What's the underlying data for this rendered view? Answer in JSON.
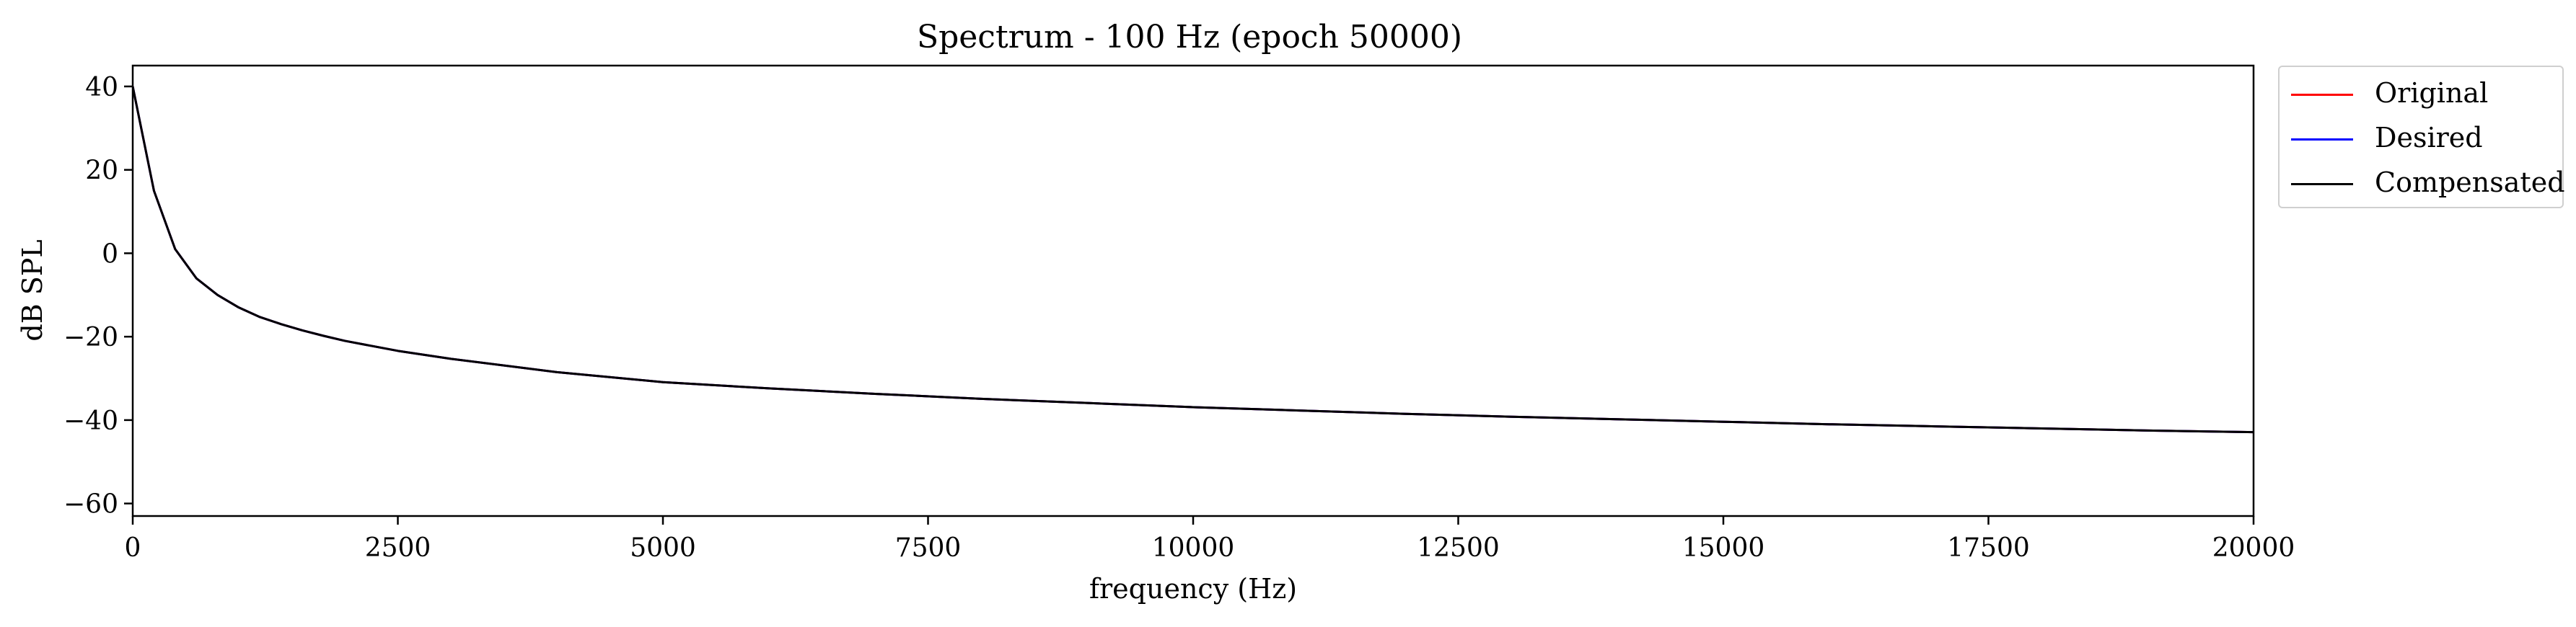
{
  "chart_data": {
    "type": "line",
    "title": "Spectrum - 100 Hz (epoch 50000)",
    "xlabel": "frequency (Hz)",
    "ylabel": "dB SPL",
    "xlim": [
      0,
      20000
    ],
    "ylim": [
      -63,
      45
    ],
    "xticks": [
      0,
      2500,
      5000,
      7500,
      10000,
      12500,
      15000,
      17500,
      20000
    ],
    "yticks": [
      40,
      20,
      0,
      -20,
      -40,
      -60
    ],
    "xtick_labels": [
      "0",
      "2500",
      "5000",
      "7500",
      "10000",
      "12500",
      "15000",
      "17500",
      "20000"
    ],
    "ytick_labels": [
      "40",
      "20",
      "0",
      "−20",
      "−40",
      "−60"
    ],
    "grid": false,
    "legend": "outside-right-top",
    "x": [
      0,
      200,
      400,
      600,
      800,
      1000,
      1200,
      1400,
      1600,
      1800,
      2000,
      2500,
      3000,
      4000,
      5000,
      6000,
      7000,
      8000,
      9000,
      10000,
      11000,
      12000,
      13000,
      14000,
      15000,
      16000,
      17000,
      18000,
      19000,
      20000
    ],
    "series": [
      {
        "name": "Original",
        "color": "#ff0000",
        "values": [
          40,
          15,
          1,
          -6,
          -10,
          -13,
          -15.3,
          -17,
          -18.5,
          -19.8,
          -21,
          -23.4,
          -25.3,
          -28.5,
          -30.9,
          -32.4,
          -33.7,
          -34.9,
          -35.9,
          -36.9,
          -37.7,
          -38.5,
          -39.2,
          -39.8,
          -40.4,
          -41,
          -41.5,
          -42,
          -42.5,
          -42.9
        ]
      },
      {
        "name": "Desired",
        "color": "#0000ff",
        "values": [
          40,
          15,
          1,
          -6,
          -10,
          -13,
          -15.3,
          -17,
          -18.5,
          -19.8,
          -21,
          -23.4,
          -25.3,
          -28.5,
          -30.9,
          -32.4,
          -33.7,
          -34.9,
          -35.9,
          -36.9,
          -37.7,
          -38.5,
          -39.2,
          -39.8,
          -40.4,
          -41,
          -41.5,
          -42,
          -42.5,
          -42.9
        ]
      },
      {
        "name": "Compensated",
        "color": "#000000",
        "values": [
          40,
          15,
          1,
          -6,
          -10,
          -13,
          -15.3,
          -17,
          -18.5,
          -19.8,
          -21,
          -23.4,
          -25.3,
          -28.5,
          -30.9,
          -32.4,
          -33.7,
          -34.9,
          -35.9,
          -36.9,
          -37.7,
          -38.5,
          -39.2,
          -39.8,
          -40.4,
          -41,
          -41.5,
          -42,
          -42.5,
          -42.9
        ]
      }
    ]
  }
}
